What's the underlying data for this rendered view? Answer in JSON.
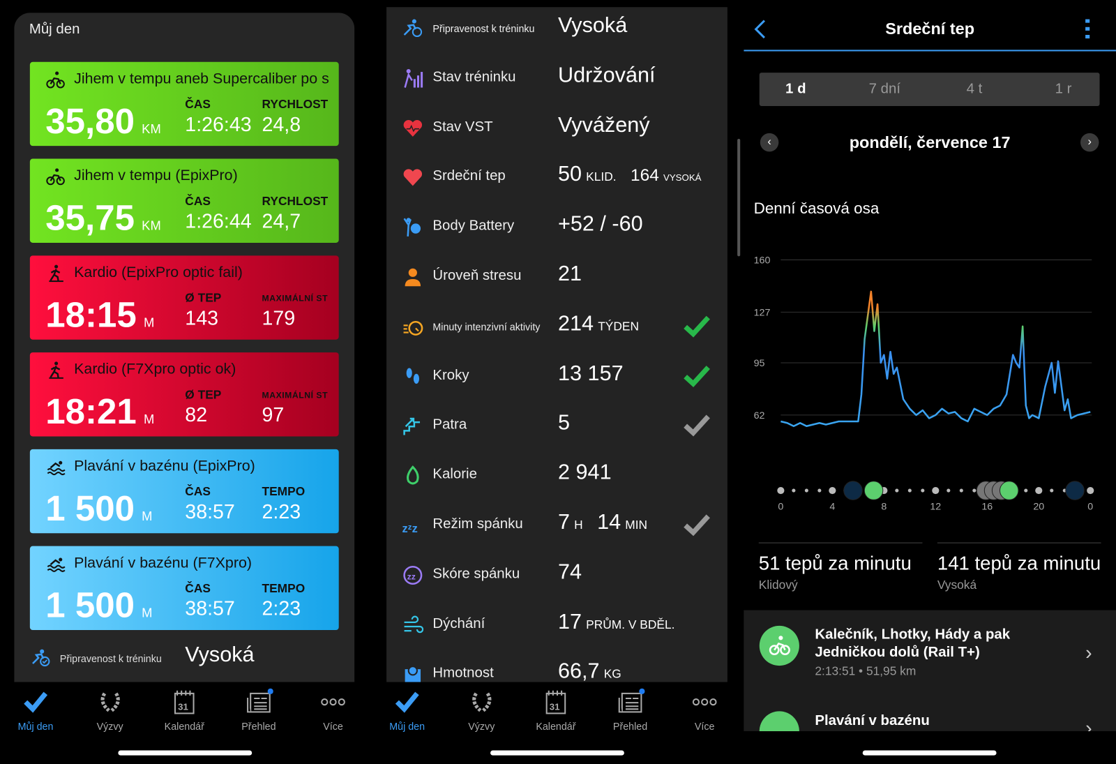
{
  "left": {
    "title": "Můj den",
    "cards": [
      {
        "color": "green",
        "icon": "bike-icon",
        "title": "Jihem v tempu aneb Supercaliber po s",
        "value": "35,80",
        "unit": "KM",
        "l1": "ČAS",
        "v1": "1:26:43",
        "l2": "RYCHLOST",
        "v2": "24,8"
      },
      {
        "color": "green",
        "icon": "bike-icon",
        "title": "Jihem v tempu (EpixPro)",
        "value": "35,75",
        "unit": "KM",
        "l1": "ČAS",
        "v1": "1:26:44",
        "l2": "RYCHLOST",
        "v2": "24,7"
      },
      {
        "color": "red",
        "icon": "cardio-icon",
        "title": "Kardio (EpixPro optic fail)",
        "value": "18:15",
        "unit": "M",
        "l1": "Ø TEP",
        "v1": "143",
        "l2": "MAXIMÁLNÍ ST",
        "v2": "179"
      },
      {
        "color": "red",
        "icon": "cardio-icon",
        "title": "Kardio (F7Xpro optic ok)",
        "value": "18:21",
        "unit": "M",
        "l1": "Ø TEP",
        "v1": "82",
        "l2": "MAXIMÁLNÍ ST",
        "v2": "97"
      },
      {
        "color": "blue",
        "icon": "swim-icon",
        "title": "Plavání v bazénu (EpixPro)",
        "value": "1 500",
        "unit": "M",
        "l1": "ČAS",
        "v1": "38:57",
        "l2": "TEMPO",
        "v2": "2:23"
      },
      {
        "color": "blue",
        "icon": "swim-icon",
        "title": "Plavání v bazénu (F7Xpro)",
        "value": "1 500",
        "unit": "M",
        "l1": "ČAS",
        "v1": "38:57",
        "l2": "TEMPO",
        "v2": "2:23"
      }
    ],
    "readiness": {
      "label": "Připravenost k tréninku",
      "value": "Vysoká"
    }
  },
  "middle": {
    "rows": [
      {
        "icon": "training-readiness-icon",
        "color": "#3b9cf5",
        "label": "Připravenost k tréninku",
        "small": true,
        "value": "Vysoká",
        "unit": "",
        "check": ""
      },
      {
        "icon": "training-status-icon",
        "color": "#9b7bf5",
        "label": "Stav tréninku",
        "value": "Udržování",
        "unit": "",
        "check": ""
      },
      {
        "icon": "hrv-heart-icon",
        "color": "#e8333f",
        "label": "Stav VST",
        "value": "Vyvážený",
        "unit": "",
        "check": ""
      },
      {
        "icon": "heart-icon",
        "color": "#f0474f",
        "label": "Srdeční tep",
        "value": "50",
        "unit": "KLID.",
        "value2": "164",
        "unit2": "VYSOKÁ",
        "check": ""
      },
      {
        "icon": "body-battery-icon",
        "color": "#3b9cf5",
        "label": "Body Battery",
        "value": "+52 / -60",
        "unit": "",
        "check": ""
      },
      {
        "icon": "stress-icon",
        "color": "#f58a1f",
        "label": "Úroveň stresu",
        "value": "21",
        "unit": "",
        "check": ""
      },
      {
        "icon": "intensity-minutes-icon",
        "color": "#f5a623",
        "label": "Minuty intenzivní aktivity",
        "small": true,
        "value": "214",
        "unit": "TÝDEN",
        "check": "green"
      },
      {
        "icon": "steps-icon",
        "color": "#3b9cf5",
        "label": "Kroky",
        "value": "13 157",
        "unit": "",
        "check": "green"
      },
      {
        "icon": "floors-icon",
        "color": "#35c6e8",
        "label": "Patra",
        "value": "5",
        "unit": "",
        "check": "gray"
      },
      {
        "icon": "calories-icon",
        "color": "#3ecf6a",
        "label": "Kalorie",
        "value": "2 941",
        "unit": "",
        "check": ""
      },
      {
        "icon": "sleep-icon",
        "color": "#3b9cf5",
        "label": "Režim spánku",
        "value": "7",
        "unit": "H",
        "value2": "14",
        "unit2": "MIN",
        "check": "gray"
      },
      {
        "icon": "sleep-score-icon",
        "color": "#9b7bf5",
        "label": "Skóre spánku",
        "value": "74",
        "unit": "",
        "check": ""
      },
      {
        "icon": "respiration-icon",
        "color": "#35c6e8",
        "label": "Dýchání",
        "value": "17",
        "unit": "PRŮM. V BDĚL.",
        "check": ""
      },
      {
        "icon": "weight-icon",
        "color": "#3b9cf5",
        "label": "Hmotnost",
        "value": "66,7",
        "unit": "KG",
        "check": ""
      }
    ]
  },
  "nav": [
    {
      "label": "Můj den",
      "icon": "checkmark-icon",
      "active": true
    },
    {
      "label": "Výzvy",
      "icon": "laurel-icon"
    },
    {
      "label": "Kalendář",
      "icon": "calendar-icon",
      "day": "31"
    },
    {
      "label": "Přehled",
      "icon": "news-icon",
      "badge": true
    },
    {
      "label": "Více",
      "icon": "more-dots-icon"
    }
  ],
  "right": {
    "title": "Srdeční tep",
    "ranges": [
      "1 d",
      "7 dní",
      "4 t",
      "1 r"
    ],
    "active_range": "1 d",
    "date": "pondělí, července 17",
    "section": "Denní časová osa",
    "resting": {
      "value": "51 tepů za minutu",
      "label": "Klidový"
    },
    "high": {
      "value": "141 tepů za minutu",
      "label": "Vysoká"
    },
    "activities": [
      {
        "icon": "bike-icon",
        "title": "Kalečník, Lhotky, Hády a pak Jedničkou dolů (Rail T+)",
        "meta": "2:13:51 • 51,95 km"
      },
      {
        "icon": "swim-icon",
        "title": "Plavání v bazénu",
        "meta": ""
      }
    ],
    "timeline_icons": [
      {
        "hour": 5.6,
        "icon": "alarm-icon",
        "bg": "#0d2a45"
      },
      {
        "hour": 7.2,
        "icon": "bike-icon",
        "bg": "#5ccf6e"
      },
      {
        "hour": 15.9,
        "icon": "walk-icon",
        "bg": "#777"
      },
      {
        "hour": 16.5,
        "icon": "walk-icon",
        "bg": "#777"
      },
      {
        "hour": 17.1,
        "icon": "walk-icon",
        "bg": "#777"
      },
      {
        "hour": 17.7,
        "icon": "swim-icon",
        "bg": "#5ccf6e"
      },
      {
        "hour": 22.8,
        "icon": "sleep-icon",
        "bg": "#0d2a45"
      }
    ]
  },
  "chart_data": {
    "type": "line",
    "title": "Denní časová osa",
    "x_ticks": [
      "0",
      "4",
      "8",
      "12",
      "16",
      "20",
      "0"
    ],
    "y_ticks": [
      160,
      127,
      95,
      62
    ],
    "xlim": [
      0,
      24
    ],
    "ylim": [
      62,
      160
    ],
    "grid": true,
    "colors": {
      "low": "#3aa8f0",
      "mid": "#5ccf6e",
      "high": "#f5832a"
    },
    "x": [
      0,
      0.5,
      1,
      1.5,
      2,
      2.5,
      3,
      3.5,
      4,
      4.5,
      5,
      5.5,
      6,
      6.25,
      6.5,
      6.75,
      7,
      7.25,
      7.5,
      7.75,
      8,
      8.25,
      8.5,
      8.75,
      9,
      9.5,
      10,
      10.5,
      11,
      11.5,
      12,
      12.5,
      13,
      13.5,
      14,
      14.5,
      15,
      15.5,
      16,
      16.5,
      17,
      17.5,
      18,
      18.25,
      18.5,
      18.75,
      19,
      19.25,
      19.5,
      20,
      20.5,
      21,
      21.25,
      21.5,
      22,
      22.25,
      22.5,
      23,
      23.5,
      24
    ],
    "y": [
      58,
      57,
      55,
      57,
      55,
      56,
      57,
      56,
      57,
      58,
      58,
      58,
      58,
      75,
      110,
      125,
      140,
      115,
      132,
      95,
      100,
      85,
      102,
      88,
      92,
      72,
      66,
      62,
      65,
      60,
      62,
      66,
      63,
      64,
      60,
      58,
      66,
      64,
      62,
      66,
      68,
      75,
      100,
      95,
      92,
      118,
      68,
      60,
      62,
      60,
      80,
      95,
      76,
      96,
      65,
      72,
      60,
      62,
      63,
      64
    ]
  }
}
